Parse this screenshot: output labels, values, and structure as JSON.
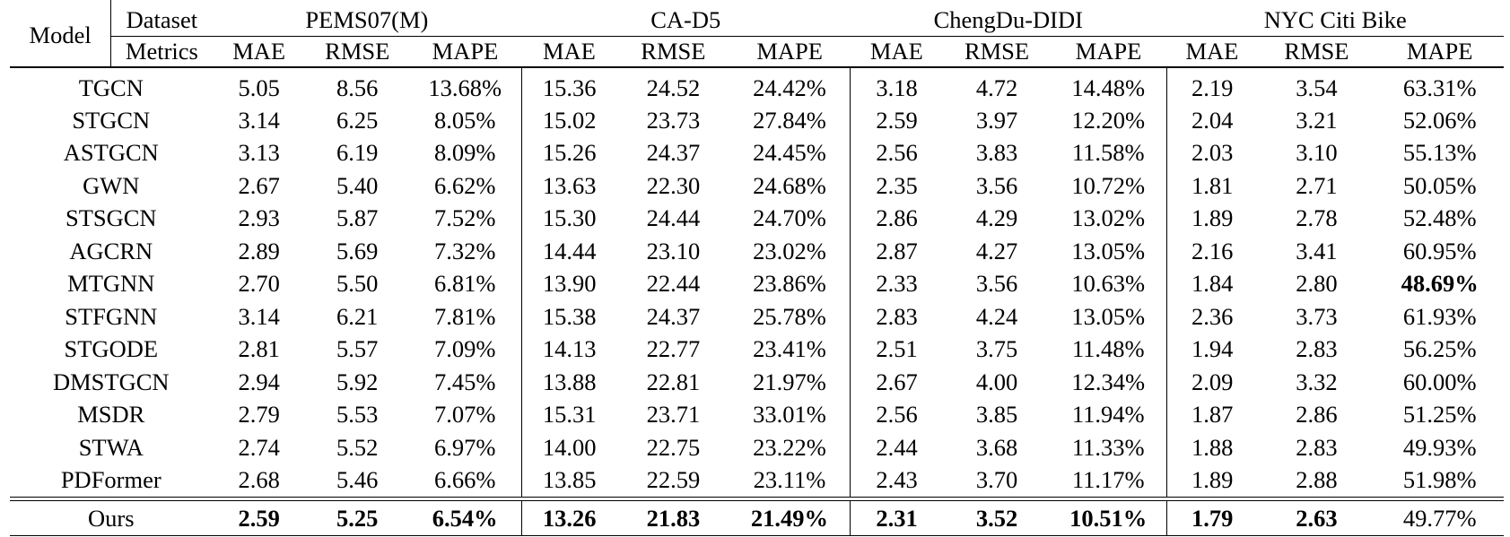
{
  "header": {
    "model_label": "Model",
    "dataset_label": "Dataset",
    "metrics_label": "Metrics",
    "datasets": [
      "PEMS07(M)",
      "CA-D5",
      "ChengDu-DIDI",
      "NYC Citi Bike"
    ],
    "metrics": [
      "MAE",
      "RMSE",
      "MAPE"
    ]
  },
  "rows": [
    {
      "model": "TGCN",
      "values": [
        "5.05",
        "8.56",
        "13.68%",
        "15.36",
        "24.52",
        "24.42%",
        "3.18",
        "4.72",
        "14.48%",
        "2.19",
        "3.54",
        "63.31%"
      ]
    },
    {
      "model": "STGCN",
      "values": [
        "3.14",
        "6.25",
        "8.05%",
        "15.02",
        "23.73",
        "27.84%",
        "2.59",
        "3.97",
        "12.20%",
        "2.04",
        "3.21",
        "52.06%"
      ]
    },
    {
      "model": "ASTGCN",
      "values": [
        "3.13",
        "6.19",
        "8.09%",
        "15.26",
        "24.37",
        "24.45%",
        "2.56",
        "3.83",
        "11.58%",
        "2.03",
        "3.10",
        "55.13%"
      ]
    },
    {
      "model": "GWN",
      "values": [
        "2.67",
        "5.40",
        "6.62%",
        "13.63",
        "22.30",
        "24.68%",
        "2.35",
        "3.56",
        "10.72%",
        "1.81",
        "2.71",
        "50.05%"
      ]
    },
    {
      "model": "STSGCN",
      "values": [
        "2.93",
        "5.87",
        "7.52%",
        "15.30",
        "24.44",
        "24.70%",
        "2.86",
        "4.29",
        "13.02%",
        "1.89",
        "2.78",
        "52.48%"
      ]
    },
    {
      "model": "AGCRN",
      "values": [
        "2.89",
        "5.69",
        "7.32%",
        "14.44",
        "23.10",
        "23.02%",
        "2.87",
        "4.27",
        "13.05%",
        "2.16",
        "3.41",
        "60.95%"
      ]
    },
    {
      "model": "MTGNN",
      "values": [
        "2.70",
        "5.50",
        "6.81%",
        "13.90",
        "22.44",
        "23.86%",
        "2.33",
        "3.56",
        "10.63%",
        "1.84",
        "2.80",
        "48.69%"
      ],
      "bold": [
        11
      ]
    },
    {
      "model": "STFGNN",
      "values": [
        "3.14",
        "6.21",
        "7.81%",
        "15.38",
        "24.37",
        "25.78%",
        "2.83",
        "4.24",
        "13.05%",
        "2.36",
        "3.73",
        "61.93%"
      ]
    },
    {
      "model": "STGODE",
      "values": [
        "2.81",
        "5.57",
        "7.09%",
        "14.13",
        "22.77",
        "23.41%",
        "2.51",
        "3.75",
        "11.48%",
        "1.94",
        "2.83",
        "56.25%"
      ]
    },
    {
      "model": "DMSTGCN",
      "values": [
        "2.94",
        "5.92",
        "7.45%",
        "13.88",
        "22.81",
        "21.97%",
        "2.67",
        "4.00",
        "12.34%",
        "2.09",
        "3.32",
        "60.00%"
      ]
    },
    {
      "model": "MSDR",
      "values": [
        "2.79",
        "5.53",
        "7.07%",
        "15.31",
        "23.71",
        "33.01%",
        "2.56",
        "3.85",
        "11.94%",
        "1.87",
        "2.86",
        "51.25%"
      ]
    },
    {
      "model": "STWA",
      "values": [
        "2.74",
        "5.52",
        "6.97%",
        "14.00",
        "22.75",
        "23.22%",
        "2.44",
        "3.68",
        "11.33%",
        "1.88",
        "2.83",
        "49.93%"
      ]
    },
    {
      "model": "PDFormer",
      "values": [
        "2.68",
        "5.46",
        "6.66%",
        "13.85",
        "22.59",
        "23.11%",
        "2.43",
        "3.70",
        "11.17%",
        "1.89",
        "2.88",
        "51.98%"
      ]
    }
  ],
  "ours": {
    "model": "Ours",
    "values": [
      "2.59",
      "5.25",
      "6.54%",
      "13.26",
      "21.83",
      "21.49%",
      "2.31",
      "3.52",
      "10.51%",
      "1.79",
      "2.63",
      "49.77%"
    ],
    "bold": [
      0,
      1,
      2,
      3,
      4,
      5,
      6,
      7,
      8,
      9,
      10
    ]
  }
}
